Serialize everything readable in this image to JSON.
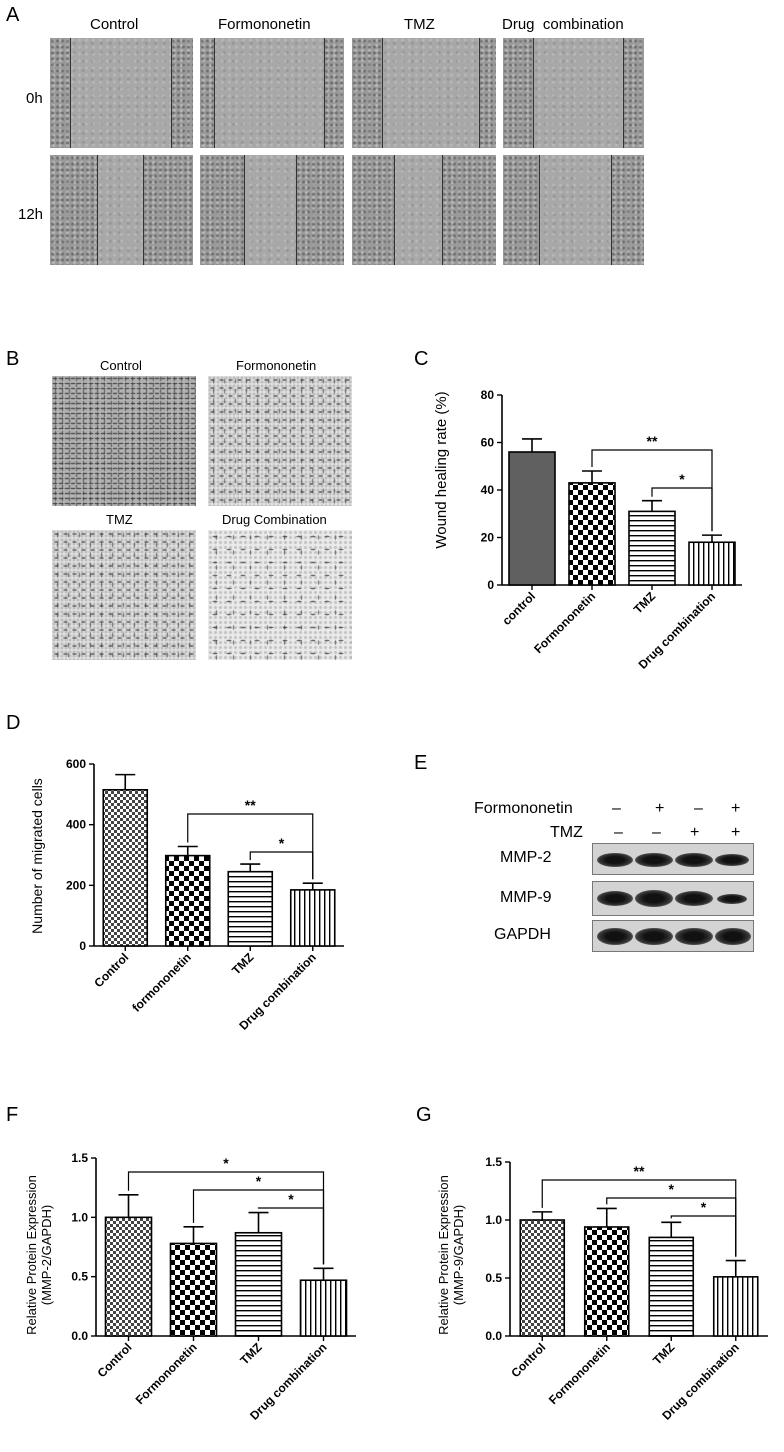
{
  "panels": {
    "A": {
      "letter": "A",
      "columns": [
        "Control",
        "Formononetin",
        "TMZ",
        "Drug  combination"
      ],
      "rows": [
        "0h",
        "12h"
      ]
    },
    "B": {
      "letter": "B",
      "labels": [
        "Control",
        "Formononetin",
        "TMZ",
        "Drug Combination"
      ]
    },
    "E": {
      "letter": "E",
      "treatments": [
        "Formononetin",
        "TMZ"
      ],
      "formononetin_signs": [
        "–",
        "+",
        "–",
        "+"
      ],
      "tmz_signs": [
        "–",
        "–",
        "+",
        "+"
      ],
      "bands": [
        "MMP-2",
        "MMP-9",
        "GAPDH"
      ]
    }
  },
  "chart_data": [
    {
      "id": "C",
      "letter": "C",
      "type": "bar",
      "categories": [
        "control",
        "Formononetin",
        "TMZ",
        "Drug combination"
      ],
      "values": [
        56,
        43,
        31,
        18
      ],
      "errors": [
        5.5,
        5,
        4.5,
        3
      ],
      "ylabel": "Wound healing rate (%)",
      "ylim": [
        0,
        80
      ],
      "yticks": [
        "0",
        "20",
        "40",
        "60",
        "80"
      ],
      "fills": [
        "solid",
        "check",
        "hlines",
        "vlines"
      ],
      "significance": [
        {
          "from": 1,
          "to": 3,
          "label": "**"
        },
        {
          "from": 2,
          "to": 3,
          "label": "*"
        }
      ]
    },
    {
      "id": "D",
      "letter": "D",
      "type": "bar",
      "categories": [
        "Control",
        "formononetin",
        "TMZ",
        "Drug combination"
      ],
      "values": [
        515,
        298,
        245,
        185
      ],
      "errors": [
        50,
        30,
        25,
        22
      ],
      "ylabel": "Number of migrated cells",
      "ylim": [
        0,
        600
      ],
      "yticks": [
        "0",
        "200",
        "400",
        "600"
      ],
      "fills": [
        "finecheck",
        "check",
        "hlines",
        "vlines"
      ],
      "significance": [
        {
          "from": 1,
          "to": 3,
          "label": "**"
        },
        {
          "from": 2,
          "to": 3,
          "label": "*"
        }
      ]
    },
    {
      "id": "F",
      "letter": "F",
      "type": "bar",
      "categories": [
        "Control",
        "Formononetin",
        "TMZ",
        "Drug combination"
      ],
      "values": [
        1.0,
        0.78,
        0.87,
        0.47
      ],
      "errors": [
        0.19,
        0.14,
        0.17,
        0.1
      ],
      "ylabel": "Relative Protein Expression",
      "ylabel2": "(MMP-2/GAPDH)",
      "ylim": [
        0,
        1.5
      ],
      "yticks": [
        "0.0",
        "0.5",
        "1.0",
        "1.5"
      ],
      "fills": [
        "finecheck",
        "check",
        "hlines",
        "vlines"
      ],
      "significance": [
        {
          "from": 0,
          "to": 3,
          "label": "*"
        },
        {
          "from": 1,
          "to": 3,
          "label": "*"
        },
        {
          "from": 2,
          "to": 3,
          "label": "*"
        }
      ]
    },
    {
      "id": "G",
      "letter": "G",
      "type": "bar",
      "categories": [
        "Control",
        "Formononetin",
        "TMZ",
        "Drug combination"
      ],
      "values": [
        1.0,
        0.94,
        0.85,
        0.51
      ],
      "errors": [
        0.07,
        0.16,
        0.13,
        0.14
      ],
      "ylabel": "Relative Protein Expression",
      "ylabel2": "(MMP-9/GAPDH)",
      "ylim": [
        0,
        1.5
      ],
      "yticks": [
        "0.0",
        "0.5",
        "1.0",
        "1.5"
      ],
      "fills": [
        "finecheck",
        "check",
        "hlines",
        "vlines"
      ],
      "significance": [
        {
          "from": 0,
          "to": 3,
          "label": "**"
        },
        {
          "from": 1,
          "to": 3,
          "label": "*"
        },
        {
          "from": 2,
          "to": 3,
          "label": "*"
        }
      ]
    }
  ]
}
